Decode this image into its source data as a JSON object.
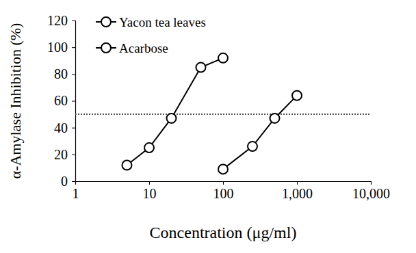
{
  "chart_data": {
    "type": "line",
    "x_label": "Concentration (μg/ml)",
    "y_label": "α-Amylase Inhibition (%)",
    "log": "x",
    "xlim": [
      1,
      10000
    ],
    "xticks": [
      1,
      10,
      100,
      {
        "value": 1000,
        "label": "1,000"
      },
      {
        "value": 10000,
        "label": "10,000"
      }
    ],
    "ylim": [
      0,
      120
    ],
    "yticks": [
      0,
      20,
      40,
      60,
      80,
      100,
      120
    ],
    "grid": false,
    "legend": "top-left",
    "reference_y": 50,
    "series": [
      {
        "name": "Yacon tea leaves",
        "color": "#000000",
        "marker": "circle",
        "line_style": "solid",
        "x": [
          5,
          10,
          20,
          50,
          100
        ],
        "values": [
          12,
          25,
          47,
          85,
          92
        ]
      },
      {
        "name": "Acarbose",
        "color": "#000000",
        "marker": "circle",
        "line_style": "solid",
        "x": [
          100,
          250,
          500,
          1000
        ],
        "values": [
          9,
          26,
          47,
          64
        ]
      }
    ]
  }
}
